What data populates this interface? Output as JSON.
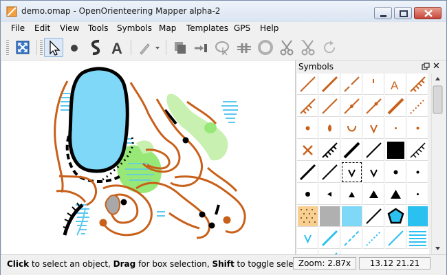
{
  "window": {
    "title": "demo.omap - OpenOrienteering Mapper alpha-2",
    "minimize_icon": "minimize-icon",
    "maximize_icon": "maximize-icon",
    "close_icon": "close-icon"
  },
  "menu": {
    "items": [
      {
        "label": "File",
        "accel": "F"
      },
      {
        "label": "Edit",
        "accel": "E"
      },
      {
        "label": "View",
        "accel": "V"
      },
      {
        "label": "Tools",
        "accel": "T"
      },
      {
        "label": "Symbols",
        "accel": "S"
      },
      {
        "label": "Map",
        "accel": "M"
      },
      {
        "label": "Templates",
        "accel": "T"
      },
      {
        "label": "GPS",
        "accel": "G"
      },
      {
        "label": "Help",
        "accel": "H"
      }
    ]
  },
  "toolbar": {
    "tools": [
      "show-whole-map-icon",
      "edit-objects-tool-icon",
      "draw-point-tool-icon",
      "draw-path-tool-icon",
      "draw-text-tool-icon",
      "pencil-tool-icon",
      "duplicate-icon",
      "switch-symbol-icon",
      "fill-border-icon",
      "cut-tool-icon",
      "cut-hole-icon",
      "scissors-icon",
      "scissors-hole-icon",
      "rotate-icon"
    ],
    "active_tool": "edit-objects-tool-icon"
  },
  "symbols_panel": {
    "title": "Symbols",
    "selected_symbol_index": 26
  },
  "status": {
    "message_bold_1": "Click",
    "message_text_1": " to select an object, ",
    "message_bold_2": "Drag",
    "message_text_2": " for box selection, ",
    "message_bold_3": "Shift",
    "message_text_3": " to toggle selection",
    "zoom": "Zoom: 2.87x",
    "coordinates": "13.12 21.21"
  },
  "colors": {
    "contour_brown": "#c8601a",
    "water_blue": "#80d8f8",
    "vegetation_green": "#80e060",
    "light_green": "#c8f0b0",
    "black": "#000000",
    "titlebar": "#dae4f1",
    "close_red": "#c8453a"
  }
}
